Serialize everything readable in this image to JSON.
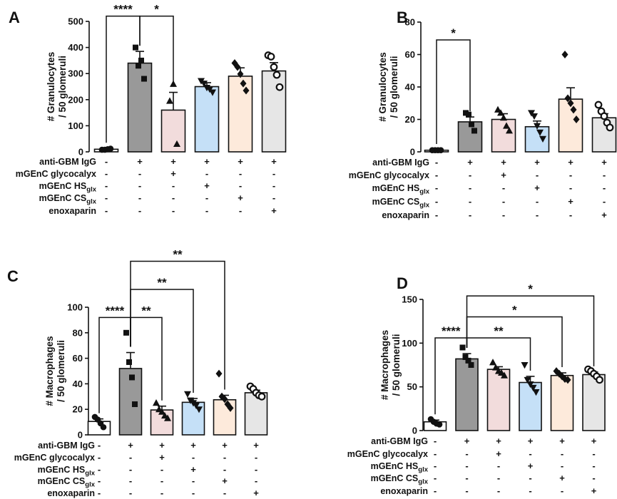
{
  "chart_data": [
    {
      "panel": "A",
      "type": "bar",
      "ylabel": [
        "# Granulocytes",
        "/ 50 glomeruli"
      ],
      "ylim": [
        0,
        500
      ],
      "yticks": [
        "0",
        "100",
        "200",
        "300",
        "400",
        "500"
      ],
      "values": [
        10,
        340,
        160,
        250,
        290,
        310
      ],
      "errors": [
        3,
        45,
        68,
        15,
        32,
        32
      ],
      "points": [
        [
          8,
          8,
          10,
          12
        ],
        [
          400,
          330,
          350,
          280
        ],
        [
          195,
          260,
          30
        ],
        [
          272,
          262,
          246,
          240,
          228
        ],
        [
          340,
          325,
          298,
          262,
          235
        ],
        [
          370,
          365,
          325,
          295,
          248
        ]
      ],
      "markers": [
        "circle",
        "square",
        "triangle",
        "triangle-down",
        "diamond",
        "open-circle"
      ],
      "conditions": [
        {
          "label": "anti-GBM IgG",
          "values": [
            "-",
            "+",
            "+",
            "+",
            "+",
            "+"
          ]
        },
        {
          "label": "mGEnC glycocalyx",
          "values": [
            "-",
            "-",
            "+",
            "-",
            "-",
            "-"
          ]
        },
        {
          "label": "mGEnC HS",
          "sub": "glx",
          "values": [
            "-",
            "-",
            "-",
            "+",
            "-",
            "-"
          ]
        },
        {
          "label": "mGEnC CS",
          "sub": "glx",
          "values": [
            "-",
            "-",
            "-",
            "-",
            "+",
            "-"
          ]
        },
        {
          "label": "enoxaparin",
          "values": [
            "-",
            "-",
            "-",
            "-",
            "-",
            "+"
          ]
        }
      ],
      "significance": [
        {
          "from": 0,
          "to": 1,
          "level": 520,
          "label": "****"
        },
        {
          "from": 1,
          "to": 2,
          "level": 520,
          "label": "*"
        }
      ]
    },
    {
      "panel": "B",
      "type": "bar",
      "ylabel": [
        "# Granulocytes",
        "/ 50 glomeruli"
      ],
      "ylim": [
        0,
        80
      ],
      "yticks": [
        "0",
        "20",
        "40",
        "60",
        "80"
      ],
      "values": [
        1,
        18.5,
        20,
        15.5,
        32.5,
        21
      ],
      "errors": [
        0.3,
        3,
        3.5,
        3.5,
        7,
        2.5
      ],
      "points": [
        [
          1,
          1,
          1,
          1
        ],
        [
          24,
          23,
          17,
          13
        ],
        [
          26,
          24,
          21,
          16,
          13
        ],
        [
          24,
          22,
          16,
          12,
          8
        ],
        [
          60,
          33,
          30,
          26,
          20
        ],
        [
          29,
          25,
          22,
          18,
          15
        ]
      ],
      "markers": [
        "circle",
        "square",
        "triangle",
        "triangle-down",
        "diamond",
        "open-circle"
      ],
      "conditions": [
        {
          "label": "anti-GBM IgG",
          "values": [
            "-",
            "+",
            "+",
            "+",
            "+",
            "+"
          ]
        },
        {
          "label": "mGEnC glycocalyx",
          "values": [
            "-",
            "-",
            "+",
            "-",
            "-",
            "-"
          ]
        },
        {
          "label": "mGEnC HS",
          "sub": "glx",
          "values": [
            "-",
            "-",
            "-",
            "+",
            "-",
            "-"
          ]
        },
        {
          "label": "mGEnC CS",
          "sub": "glx",
          "values": [
            "-",
            "-",
            "-",
            "-",
            "+",
            "-"
          ]
        },
        {
          "label": "enoxaparin",
          "values": [
            "-",
            "-",
            "-",
            "-",
            "-",
            "+"
          ]
        }
      ],
      "significance": [
        {
          "from": 0,
          "to": 1,
          "level": 69,
          "label": "*"
        }
      ]
    },
    {
      "panel": "C",
      "type": "bar",
      "ylabel": [
        "# Macrophages",
        "/ 50 glomeruli"
      ],
      "ylim": [
        0,
        100
      ],
      "yticks": [
        "0",
        "20",
        "40",
        "60",
        "80",
        "100"
      ],
      "values": [
        10.5,
        52,
        19.5,
        25.5,
        27.5,
        33
      ],
      "errors": [
        2,
        12.5,
        3,
        3,
        3.5,
        2
      ],
      "points": [
        [
          14,
          12,
          9,
          6
        ],
        [
          80,
          57,
          45,
          24
        ],
        [
          25,
          20,
          18,
          15,
          13
        ],
        [
          32,
          27,
          25,
          23,
          20
        ],
        [
          48,
          30,
          28,
          24,
          21
        ],
        [
          38,
          36,
          33,
          31,
          30
        ]
      ],
      "markers": [
        "circle",
        "square",
        "triangle",
        "triangle-down",
        "diamond",
        "open-circle"
      ],
      "conditions": [
        {
          "label": "anti-GBM IgG",
          "values": [
            "-",
            "+",
            "+",
            "+",
            "+",
            "+"
          ]
        },
        {
          "label": "mGEnC glycocalyx",
          "values": [
            "-",
            "-",
            "+",
            "-",
            "-",
            "-"
          ]
        },
        {
          "label": "mGEnC HS",
          "sub": "glx",
          "values": [
            "-",
            "-",
            "-",
            "+",
            "-",
            "-"
          ]
        },
        {
          "label": "mGEnC CS",
          "sub": "glx",
          "values": [
            "-",
            "-",
            "-",
            "-",
            "+",
            "-"
          ]
        },
        {
          "label": "enoxaparin",
          "values": [
            "-",
            "-",
            "-",
            "-",
            "-",
            "+"
          ]
        }
      ],
      "significance": [
        {
          "from": 0,
          "to": 1,
          "level": 92,
          "label": "****"
        },
        {
          "from": 1,
          "to": 2,
          "level": 92,
          "label": "**"
        },
        {
          "from": 1,
          "to": 3,
          "level": 114,
          "label": "**"
        },
        {
          "from": 1,
          "to": 4,
          "level": 136,
          "label": "**"
        }
      ]
    },
    {
      "panel": "D",
      "type": "bar",
      "ylabel": [
        "# Macrophages",
        "/ 50 glomeruli"
      ],
      "ylim": [
        0,
        150
      ],
      "yticks": [
        "0",
        "50",
        "100",
        "150"
      ],
      "values": [
        10,
        82,
        70,
        55,
        63,
        64
      ],
      "errors": [
        2,
        6,
        3,
        7,
        3,
        3
      ],
      "points": [
        [
          13,
          10,
          8,
          7
        ],
        [
          95,
          84,
          80,
          75
        ],
        [
          78,
          72,
          68,
          66,
          63
        ],
        [
          75,
          58,
          53,
          49,
          44
        ],
        [
          68,
          65,
          62,
          59,
          58
        ],
        [
          70,
          68,
          65,
          62,
          58
        ]
      ],
      "markers": [
        "circle",
        "square",
        "triangle",
        "triangle-down",
        "diamond",
        "open-circle"
      ],
      "conditions": [
        {
          "label": "anti-GBM IgG",
          "values": [
            "-",
            "+",
            "+",
            "+",
            "+",
            "+"
          ]
        },
        {
          "label": "mGEnC glycocalyx",
          "values": [
            "-",
            "-",
            "+",
            "-",
            "-",
            "-"
          ]
        },
        {
          "label": "mGEnC HS",
          "sub": "glx",
          "values": [
            "-",
            "-",
            "-",
            "+",
            "-",
            "-"
          ]
        },
        {
          "label": "mGEnC CS",
          "sub": "glx",
          "values": [
            "-",
            "-",
            "-",
            "-",
            "+",
            "-"
          ]
        },
        {
          "label": "enoxaparin",
          "values": [
            "-",
            "-",
            "-",
            "-",
            "-",
            "+"
          ]
        }
      ],
      "significance": [
        {
          "from": 0,
          "to": 1,
          "level": 106,
          "label": "****"
        },
        {
          "from": 1,
          "to": 3,
          "level": 106,
          "label": "**"
        },
        {
          "from": 1,
          "to": 4,
          "level": 130,
          "label": "*"
        },
        {
          "from": 1,
          "to": 5,
          "level": 154,
          "label": "*"
        }
      ]
    }
  ],
  "bar_colors": [
    "#ffffff",
    "#999999",
    "#f2dcdc",
    "#c5e0f7",
    "#fdeadb",
    "#e6e6e6"
  ]
}
